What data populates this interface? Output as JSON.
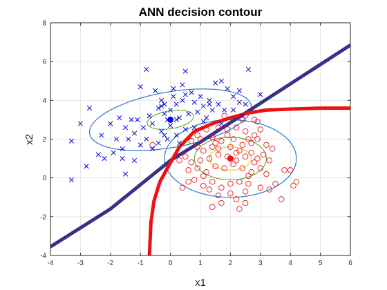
{
  "chart_data": {
    "type": "scatter",
    "title": "ANN decision contour",
    "xlabel": "x1",
    "ylabel": "x2",
    "xlim": [
      -4,
      6
    ],
    "ylim": [
      -4,
      8
    ],
    "xticks": [
      "-4",
      "-3",
      "-2",
      "-1",
      "0",
      "1",
      "2",
      "3",
      "4",
      "5",
      "6"
    ],
    "yticks": [
      "-4",
      "-2",
      "0",
      "2",
      "4",
      "6",
      "8"
    ],
    "grid": true,
    "colors": {
      "class1": "#0000dd",
      "class2": "#ee1111",
      "ellipse_outer": "#2a78c8",
      "ellipse_mid": "#66aa44",
      "ellipse_inner": "#e8d020",
      "ann_boundary": "#35308a",
      "bayes_boundary": "#ee1111",
      "grid": "#e6e6e6",
      "axes": "#262626"
    },
    "series": [
      {
        "name": "class 1",
        "marker": "x",
        "points": [
          [
            -0.8,
            5.6
          ],
          [
            0.5,
            5.5
          ],
          [
            -1.0,
            4.7
          ],
          [
            -0.5,
            4.5
          ],
          [
            -0.3,
            4.0
          ],
          [
            0.1,
            4.2
          ],
          [
            0.2,
            3.8
          ],
          [
            0.4,
            4.0
          ],
          [
            0.5,
            4.3
          ],
          [
            0.7,
            4.4
          ],
          [
            0.8,
            3.9
          ],
          [
            1.0,
            4.2
          ],
          [
            1.1,
            3.7
          ],
          [
            1.3,
            4.0
          ],
          [
            1.6,
            3.8
          ],
          [
            1.8,
            3.5
          ],
          [
            1.9,
            4.6
          ],
          [
            2.1,
            4.2
          ],
          [
            2.3,
            3.9
          ],
          [
            1.5,
            4.9
          ],
          [
            1.7,
            5.0
          ],
          [
            2.1,
            3.5
          ],
          [
            2.3,
            4.5
          ],
          [
            -0.7,
            3.2
          ],
          [
            -0.4,
            3.6
          ],
          [
            -0.2,
            3.3
          ],
          [
            0.0,
            3.5
          ],
          [
            0.3,
            3.1
          ],
          [
            0.6,
            3.3
          ],
          [
            0.9,
            3.4
          ],
          [
            1.2,
            3.1
          ],
          [
            1.4,
            3.5
          ],
          [
            1.1,
            2.9
          ],
          [
            -1.1,
            3.0
          ],
          [
            -0.9,
            2.6
          ],
          [
            -0.6,
            2.8
          ],
          [
            -0.3,
            2.4
          ],
          [
            0.0,
            2.7
          ],
          [
            0.2,
            2.2
          ],
          [
            0.5,
            2.5
          ],
          [
            0.8,
            2.6
          ],
          [
            -1.5,
            2.6
          ],
          [
            -1.8,
            2.0
          ],
          [
            -1.4,
            2.0
          ],
          [
            -1.2,
            2.3
          ],
          [
            -2.0,
            2.8
          ],
          [
            -2.3,
            2.2
          ],
          [
            -1.6,
            1.5
          ],
          [
            -1.0,
            1.7
          ],
          [
            -0.8,
            2.0
          ],
          [
            -0.4,
            1.8
          ],
          [
            -0.1,
            2.0
          ],
          [
            -0.6,
            1.5
          ],
          [
            0.3,
            1.8
          ],
          [
            -2.4,
            1.2
          ],
          [
            -2.2,
            1.0
          ],
          [
            -1.9,
            1.3
          ],
          [
            -1.6,
            1.0
          ],
          [
            -1.2,
            0.9
          ],
          [
            -2.7,
            3.6
          ],
          [
            -3.0,
            2.8
          ],
          [
            -3.3,
            1.9
          ],
          [
            -2.8,
            0.6
          ],
          [
            -1.5,
            0.2
          ],
          [
            -3.3,
            -0.1
          ],
          [
            -0.1,
            3.0
          ],
          [
            0.2,
            3.0
          ],
          [
            -0.2,
            2.2
          ],
          [
            0.1,
            4.6
          ],
          [
            0.4,
            4.8
          ],
          [
            -0.2,
            3.8
          ],
          [
            1.3,
            3.8
          ],
          [
            2.4,
            3.2
          ],
          [
            2.5,
            3.8
          ],
          [
            2.6,
            5.6
          ],
          [
            3.0,
            4.3
          ],
          [
            -1.7,
            3.1
          ],
          [
            -1.3,
            3.0
          ],
          [
            1.7,
            2.8
          ],
          [
            -0.3,
            3.7
          ]
        ]
      },
      {
        "name": "class 2",
        "marker": "o",
        "points": [
          [
            1.8,
            3.2
          ],
          [
            2.4,
            3.0
          ],
          [
            2.8,
            3.0
          ],
          [
            2.2,
            2.6
          ],
          [
            1.9,
            2.5
          ],
          [
            1.6,
            2.6
          ],
          [
            2.5,
            2.4
          ],
          [
            2.8,
            2.2
          ],
          [
            3.0,
            2.5
          ],
          [
            2.1,
            2.0
          ],
          [
            1.7,
            1.9
          ],
          [
            1.4,
            2.1
          ],
          [
            2.4,
            1.7
          ],
          [
            2.7,
            1.8
          ],
          [
            2.9,
            2.0
          ],
          [
            3.2,
            1.7
          ],
          [
            3.4,
            1.5
          ],
          [
            1.2,
            2.5
          ],
          [
            0.9,
            2.2
          ],
          [
            0.7,
            1.9
          ],
          [
            0.9,
            1.6
          ],
          [
            1.1,
            1.4
          ],
          [
            1.4,
            1.6
          ],
          [
            1.6,
            1.2
          ],
          [
            1.9,
            1.1
          ],
          [
            2.2,
            1.3
          ],
          [
            2.5,
            1.1
          ],
          [
            2.7,
            1.3
          ],
          [
            2.9,
            1.0
          ],
          [
            3.1,
            1.2
          ],
          [
            3.3,
            0.9
          ],
          [
            1.3,
            1.0
          ],
          [
            1.0,
            0.9
          ],
          [
            0.7,
            0.8
          ],
          [
            0.5,
            1.1
          ],
          [
            0.3,
            0.9
          ],
          [
            0.6,
            0.4
          ],
          [
            0.9,
            0.5
          ],
          [
            1.2,
            0.3
          ],
          [
            1.5,
            0.6
          ],
          [
            1.8,
            0.5
          ],
          [
            2.1,
            0.7
          ],
          [
            2.4,
            0.5
          ],
          [
            2.7,
            0.3
          ],
          [
            3.0,
            0.5
          ],
          [
            3.2,
            0.2
          ],
          [
            2.3,
            -0.2
          ],
          [
            2.0,
            -0.3
          ],
          [
            1.7,
            -0.5
          ],
          [
            1.4,
            -0.2
          ],
          [
            1.1,
            -0.4
          ],
          [
            0.8,
            -0.1
          ],
          [
            0.4,
            -0.5
          ],
          [
            1.3,
            -0.6
          ],
          [
            1.6,
            -0.9
          ],
          [
            2.0,
            -0.8
          ],
          [
            2.5,
            -0.7
          ],
          [
            3.0,
            -0.5
          ],
          [
            3.5,
            -0.3
          ],
          [
            2.2,
            -1.1
          ],
          [
            2.5,
            -1.3
          ],
          [
            1.4,
            -1.5
          ],
          [
            1.7,
            -1.3
          ],
          [
            2.3,
            -1.6
          ],
          [
            2.6,
            -0.3
          ],
          [
            3.8,
            0.4
          ],
          [
            4.0,
            0.4
          ],
          [
            4.1,
            -0.4
          ],
          [
            4.2,
            -0.2
          ],
          [
            3.3,
            -0.6
          ],
          [
            3.7,
            -1.1
          ],
          [
            -0.6,
            1.7
          ],
          [
            2.2,
            0.9
          ],
          [
            1.9,
            2.2
          ],
          [
            2.6,
            2.0
          ],
          [
            2.9,
            2.9
          ],
          [
            1.5,
            1.8
          ],
          [
            1.0,
            2.0
          ],
          [
            2.0,
            1.6
          ],
          [
            2.3,
            1.4
          ],
          [
            1.6,
            1.5
          ],
          [
            2.8,
            0.8
          ],
          [
            1.1,
            0.1
          ],
          [
            2.6,
            0.1
          ],
          [
            0.6,
            -0.2
          ]
        ]
      }
    ],
    "means": [
      {
        "name": "class 1 mean",
        "x": 0.0,
        "y": 3.0
      },
      {
        "name": "class 2 mean",
        "x": 2.0,
        "y": 1.0
      }
    ],
    "ellipses": [
      {
        "name": "class 1 outer contour",
        "cx": 0.0,
        "cy": 3.0,
        "rx": 2.8,
        "ry": 1.4,
        "angle_deg": 18
      },
      {
        "name": "class 1 middle contour",
        "cx": 0.0,
        "cy": 3.0,
        "rx": 0.8,
        "ry": 0.45,
        "angle_deg": 18
      },
      {
        "name": "class 2 outer contour",
        "cx": 2.0,
        "cy": 1.0,
        "rx": 2.2,
        "ry": 2.0,
        "angle_deg": 0
      },
      {
        "name": "class 2 middle contour",
        "cx": 2.0,
        "cy": 1.0,
        "rx": 1.2,
        "ry": 1.1,
        "angle_deg": 0
      },
      {
        "name": "class 2 inner contour",
        "cx": 2.0,
        "cy": 1.0,
        "rx": 0.7,
        "ry": 0.6,
        "angle_deg": 0
      }
    ],
    "boundaries": [
      {
        "name": "ANN decision boundary",
        "points": [
          [
            -4.0,
            -3.55
          ],
          [
            -2.0,
            -1.6
          ],
          [
            0.0,
            0.9
          ],
          [
            1.0,
            1.85
          ],
          [
            2.0,
            2.85
          ],
          [
            3.0,
            3.85
          ],
          [
            4.0,
            4.85
          ],
          [
            5.0,
            5.85
          ],
          [
            6.0,
            6.85
          ]
        ]
      },
      {
        "name": "Bayes decision boundary",
        "points": [
          [
            -0.7,
            -4.0
          ],
          [
            -0.65,
            -2.3
          ],
          [
            -0.55,
            -1.2
          ],
          [
            -0.35,
            -0.2
          ],
          [
            -0.1,
            0.5
          ],
          [
            0.3,
            1.6
          ],
          [
            0.8,
            2.4
          ],
          [
            1.4,
            2.8
          ],
          [
            2.0,
            3.1
          ],
          [
            2.6,
            3.35
          ],
          [
            3.2,
            3.5
          ],
          [
            4.0,
            3.55
          ],
          [
            5.0,
            3.6
          ],
          [
            6.0,
            3.6
          ]
        ]
      }
    ]
  }
}
